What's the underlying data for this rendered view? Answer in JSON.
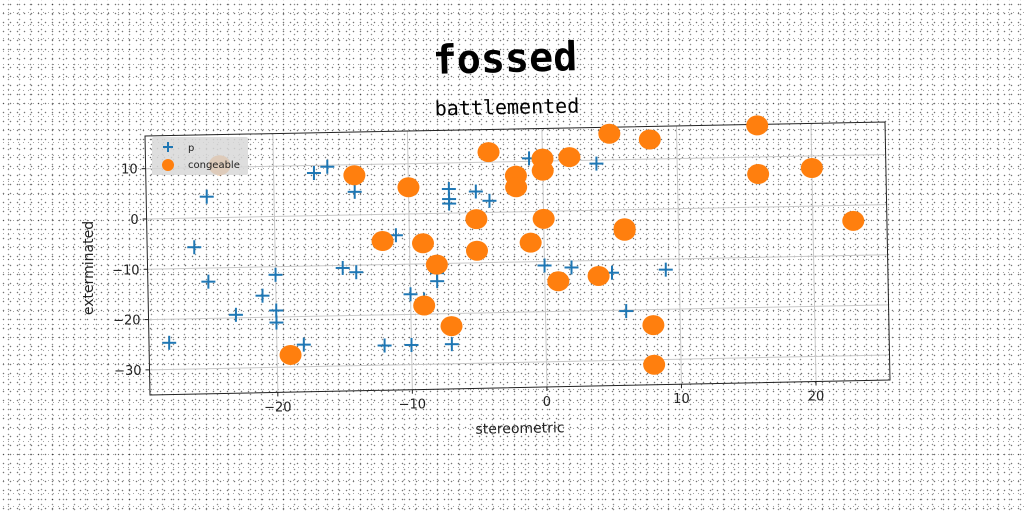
{
  "chart_data": {
    "type": "scatter",
    "title": "fossed",
    "subtitle": "battlemented",
    "xlabel": "stereometric",
    "ylabel": "exterminated",
    "xlim": [
      -29.5,
      25.5
    ],
    "ylim": [
      -35,
      16.5
    ],
    "xticks": [
      -20,
      -10,
      0,
      10,
      20
    ],
    "yticks": [
      -30,
      -20,
      -10,
      0,
      10
    ],
    "grid": true,
    "legend_position": "top-left",
    "series": [
      {
        "name": "p",
        "marker": "plus",
        "color": "#1f77b4",
        "points": [
          [
            -25.0,
            4.2
          ],
          [
            -26.0,
            -5.8
          ],
          [
            -25.0,
            -12.7
          ],
          [
            -23.0,
            -19.4
          ],
          [
            -28.0,
            -24.7
          ],
          [
            -21.0,
            -15.7
          ],
          [
            -20.0,
            -11.6
          ],
          [
            -20.0,
            -18.7
          ],
          [
            -20.0,
            -21.1
          ],
          [
            -18.0,
            -25.6
          ],
          [
            -17.0,
            8.5
          ],
          [
            -16.0,
            9.7
          ],
          [
            -14.0,
            4.6
          ],
          [
            -15.0,
            -10.5
          ],
          [
            -14.0,
            -11.4
          ],
          [
            -12.0,
            -26.1
          ],
          [
            -10.0,
            -26.1
          ],
          [
            -7.0,
            -26.1
          ],
          [
            -10.0,
            -16.0
          ],
          [
            -9.0,
            -17.1
          ],
          [
            -8.0,
            -11.9
          ],
          [
            -8.0,
            -13.5
          ],
          [
            -11.0,
            -4.2
          ],
          [
            -7.0,
            4.8
          ],
          [
            -7.0,
            2.8
          ],
          [
            -7.0,
            1.9
          ],
          [
            -5.0,
            4.2
          ],
          [
            -4.0,
            2.3
          ],
          [
            -1.0,
            10.6
          ],
          [
            0.0,
            -10.8
          ],
          [
            2.0,
            -11.3
          ],
          [
            4.0,
            9.3
          ],
          [
            5.0,
            -12.5
          ],
          [
            6.0,
            -20.2
          ],
          [
            9.0,
            -12.1
          ]
        ]
      },
      {
        "name": "congeable",
        "marker": "circle",
        "color": "#ff7f0e",
        "points": [
          [
            -24.0,
            10.4
          ],
          [
            -14.0,
            7.9
          ],
          [
            -10.0,
            5.3
          ],
          [
            -12.0,
            -5.3
          ],
          [
            -9.0,
            -5.9
          ],
          [
            -8.0,
            -10.2
          ],
          [
            -9.0,
            -18.3
          ],
          [
            -7.0,
            -22.5
          ],
          [
            -19.0,
            -27.6
          ],
          [
            -4.0,
            12.0
          ],
          [
            -2.0,
            7.2
          ],
          [
            -2.0,
            4.9
          ],
          [
            0.0,
            10.5
          ],
          [
            0.0,
            8.1
          ],
          [
            -5.0,
            -1.3
          ],
          [
            -5.0,
            -7.6
          ],
          [
            -1.0,
            -6.2
          ],
          [
            0.0,
            -1.5
          ],
          [
            2.0,
            10.7
          ],
          [
            1.0,
            -14.0
          ],
          [
            4.0,
            -13.1
          ],
          [
            5.0,
            15.2
          ],
          [
            8.0,
            13.9
          ],
          [
            6.0,
            -4.2
          ],
          [
            6.0,
            -3.7
          ],
          [
            8.0,
            -23.1
          ],
          [
            8.0,
            -31.0
          ],
          [
            16.0,
            16.3
          ],
          [
            16.0,
            6.6
          ],
          [
            20.0,
            7.6
          ],
          [
            23.0,
            -3.1
          ]
        ]
      }
    ]
  }
}
